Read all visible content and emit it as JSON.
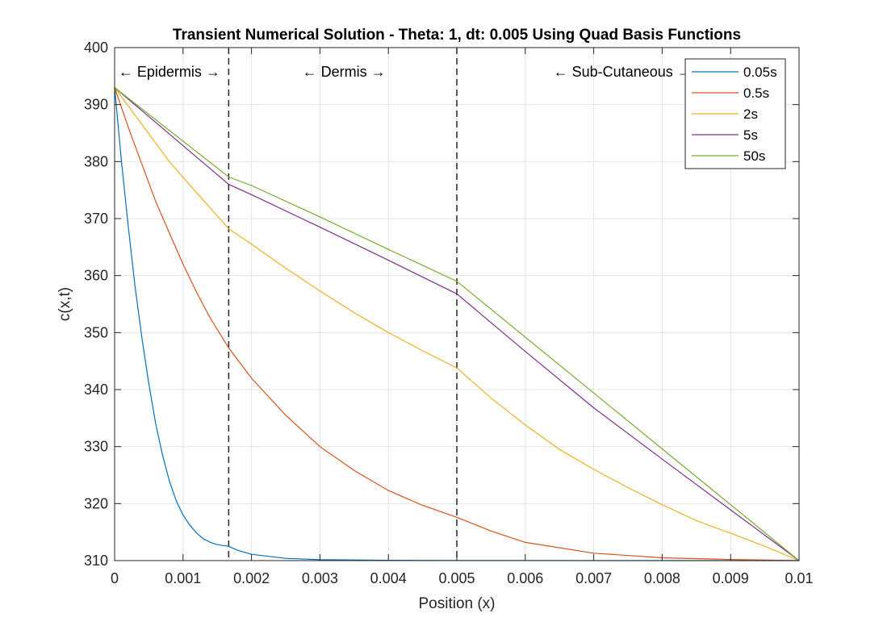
{
  "chart_data": {
    "type": "line",
    "title": "Transient Numerical Solution - Theta: 1, dt: 0.005 Using Quad Basis Functions",
    "xlabel": "Position (x)",
    "ylabel": "c(x,t)",
    "xlim": [
      0,
      0.01
    ],
    "ylim": [
      310,
      400
    ],
    "xticks": [
      0,
      0.001,
      0.002,
      0.003,
      0.004,
      0.005,
      0.006,
      0.007,
      0.008,
      0.009,
      0.01
    ],
    "xtick_labels": [
      "0",
      "0.001",
      "0.002",
      "0.003",
      "0.004",
      "0.005",
      "0.006",
      "0.007",
      "0.008",
      "0.009",
      "0.01"
    ],
    "yticks": [
      310,
      320,
      330,
      340,
      350,
      360,
      370,
      380,
      390,
      400
    ],
    "ytick_labels": [
      "310",
      "320",
      "330",
      "340",
      "350",
      "360",
      "370",
      "380",
      "390",
      "400"
    ],
    "grid": true,
    "legend_position": "top-right",
    "boundaries": [
      0.001667,
      0.005
    ],
    "region_labels": [
      {
        "text": "← Epidermis →",
        "x": 0.0008
      },
      {
        "text": "← Dermis →",
        "x": 0.00335
      },
      {
        "text": "← Sub-Cutaneous →",
        "x": 0.00742
      }
    ],
    "series": [
      {
        "name": "0.05s",
        "color": "#0072BD",
        "x": [
          0,
          0.0001,
          0.0002,
          0.0003,
          0.0004,
          0.0005,
          0.0006,
          0.0007,
          0.0008,
          0.0009,
          0.001,
          0.0011,
          0.0012,
          0.0013,
          0.0014,
          0.0015,
          0.001667,
          0.0018,
          0.002,
          0.0025,
          0.003,
          0.004,
          0.005,
          0.006,
          0.007,
          0.008,
          0.009,
          0.01
        ],
        "y": [
          393,
          380,
          368.5,
          358,
          349,
          341,
          334,
          328.5,
          324,
          320.5,
          318,
          316.2,
          314.8,
          313.8,
          313.2,
          312.8,
          312.5,
          311.8,
          311.1,
          310.4,
          310.15,
          310.05,
          310.02,
          310.01,
          310,
          310,
          310,
          310
        ]
      },
      {
        "name": "0.5s",
        "color": "#D95319",
        "x": [
          0,
          0.0002,
          0.0004,
          0.0006,
          0.0008,
          0.001,
          0.0012,
          0.0014,
          0.001667,
          0.002,
          0.0025,
          0.003,
          0.0035,
          0.004,
          0.0045,
          0.005,
          0.0055,
          0.006,
          0.007,
          0.008,
          0.009,
          0.01
        ],
        "y": [
          393,
          386,
          379.5,
          373,
          367.5,
          362,
          357,
          352.5,
          347.3,
          342,
          335.5,
          330,
          325.8,
          322.3,
          319.7,
          317.6,
          315.2,
          313.2,
          311.3,
          310.5,
          310.2,
          310
        ]
      },
      {
        "name": "2s",
        "color": "#EDB120",
        "x": [
          0,
          0.0004,
          0.0008,
          0.0012,
          0.001667,
          0.002,
          0.0025,
          0.003,
          0.0035,
          0.004,
          0.0045,
          0.005,
          0.0055,
          0.006,
          0.0065,
          0.007,
          0.0075,
          0.008,
          0.0085,
          0.009,
          0.0095,
          0.01
        ],
        "y": [
          393,
          386.5,
          380,
          374.5,
          368.2,
          365.5,
          361.3,
          357.3,
          353.5,
          350,
          346.8,
          343.8,
          338.5,
          333.8,
          329.5,
          326,
          322.8,
          319.8,
          317,
          314.8,
          312.5,
          310
        ]
      },
      {
        "name": "5s",
        "color": "#7E2F8E",
        "x": [
          0,
          0.001667,
          0.002,
          0.003,
          0.004,
          0.005,
          0.006,
          0.007,
          0.008,
          0.009,
          0.01
        ],
        "y": [
          393,
          376,
          374.2,
          368.5,
          362.7,
          356.8,
          346.7,
          336.8,
          327.8,
          318.9,
          310
        ]
      },
      {
        "name": "50s",
        "color": "#77AC30",
        "x": [
          0,
          0.001667,
          0.002,
          0.003,
          0.004,
          0.005,
          0.006,
          0.007,
          0.008,
          0.009,
          0.01
        ],
        "y": [
          393,
          377.3,
          375.8,
          370.3,
          364.6,
          359,
          349.2,
          339.4,
          329.6,
          319.8,
          310
        ]
      }
    ]
  }
}
